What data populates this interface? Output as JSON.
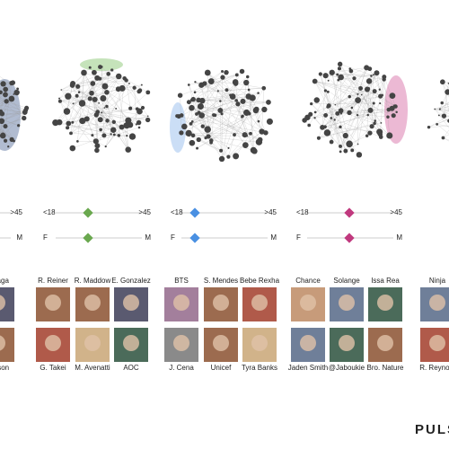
{
  "columns": [
    {
      "age": [
        ">45"
      ],
      "gender": [
        "M"
      ],
      "top_names": [
        "y Gaga"
      ],
      "bottom_names": [
        "ohnson"
      ]
    },
    {
      "age": [
        "<18",
        ">45"
      ],
      "gender": [
        "F",
        "M"
      ],
      "top_names": [
        "R. Reiner",
        "R. Maddow",
        "E. Gonzalez"
      ],
      "bottom_names": [
        "G. Takei",
        "M. Avenatti",
        "AOC"
      ]
    },
    {
      "age": [
        "<18",
        ">45"
      ],
      "gender": [
        "F",
        "M"
      ],
      "top_names": [
        "BTS",
        "S. Mendes",
        "Bebe Rexha"
      ],
      "bottom_names": [
        "J. Cena",
        "Unicef",
        "Tyra Banks"
      ]
    },
    {
      "age": [
        "<18",
        ">45"
      ],
      "gender": [
        "F",
        "M"
      ],
      "top_names": [
        "Chance",
        "Solange",
        "Issa Rea"
      ],
      "bottom_names": [
        "Jaden Smith",
        "@Jaboukie",
        "Bro. Nature"
      ]
    },
    {
      "age": [],
      "gender": [],
      "top_names": [
        "Ninja"
      ],
      "bottom_names": [
        "R. Reynolo"
      ]
    }
  ],
  "brand": "PULS"
}
